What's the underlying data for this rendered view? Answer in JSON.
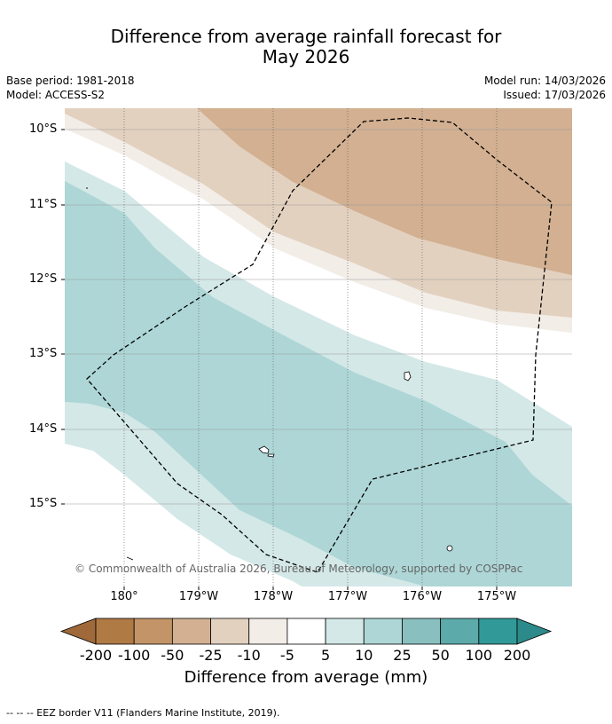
{
  "title_line1": "Difference from average rainfall forecast for",
  "title_line2": "May 2026",
  "meta_left": [
    "Base period: 1981-2018",
    "Model: ACCESS-S2"
  ],
  "meta_right": [
    "Model run: 14/03/2026",
    "Issued: 17/03/2026"
  ],
  "lat_labels": [
    "10°S",
    "11°S",
    "12°S",
    "13°S",
    "14°S",
    "15°S"
  ],
  "lon_labels": [
    "180°",
    "179°W",
    "178°W",
    "177°W",
    "176°W",
    "175°W"
  ],
  "copyright": "© Commonwealth of Australia 2026, Bureau of Meteorology, supported by COSPPac",
  "colorbar": {
    "labels": [
      "-200",
      "-100",
      "-50",
      "-25",
      "-10",
      "-5",
      "5",
      "10",
      "25",
      "50",
      "100",
      "200"
    ],
    "colors": [
      "#a0693a",
      "#b07a45",
      "#c29467",
      "#d2b091",
      "#e3d1c0",
      "#f2ede7",
      "#ffffff",
      "#d4e8e8",
      "#aed6d6",
      "#8abfbf",
      "#5caaaa",
      "#319a98",
      "#2c8a8a"
    ],
    "title": "Difference from average (mm)"
  },
  "footnote": "--  --  -- EEZ border V11 (Flanders Marine Institute, 2019).",
  "map": {
    "dry_colors": [
      "#d2b091",
      "#e3d1c0",
      "#f2ede7"
    ],
    "wet_colors": [
      "#d4e8e8",
      "#aed6d6"
    ]
  }
}
